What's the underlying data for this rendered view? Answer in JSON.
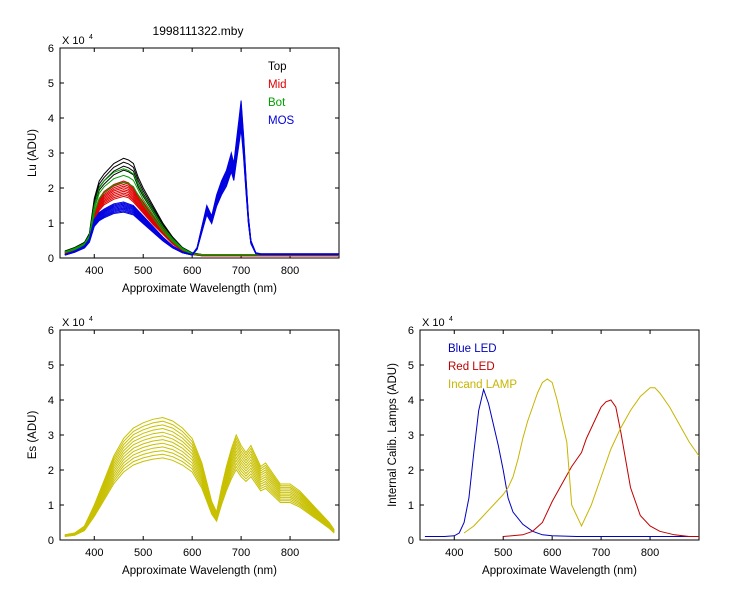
{
  "figure_title": "1998111322.mby",
  "chart_data": [
    {
      "id": "lu",
      "type": "line",
      "title": "",
      "ylabel": "Lu (ADU)",
      "xlabel": "Approximate Wavelength (nm)",
      "xlim": [
        330,
        900
      ],
      "ylim": [
        0,
        6
      ],
      "y_multiplier": "X 10",
      "y_multiplier_exp": "4",
      "xticks": [
        400,
        500,
        600,
        700,
        800
      ],
      "yticks": [
        0,
        1,
        2,
        3,
        4,
        5,
        6
      ],
      "legend_position": "top-right",
      "series": [
        {
          "name": "Top",
          "color": "#000000",
          "copies": 4,
          "spread": 0.12,
          "x": [
            340,
            360,
            380,
            390,
            400,
            410,
            420,
            440,
            460,
            470,
            480,
            490,
            500,
            520,
            540,
            560,
            580,
            600,
            620,
            640,
            660,
            680,
            690,
            700,
            710,
            720,
            740,
            760,
            800,
            850,
            900
          ],
          "y": [
            0.2,
            0.3,
            0.45,
            0.7,
            1.7,
            2.2,
            2.4,
            2.7,
            2.85,
            2.8,
            2.7,
            2.3,
            2.0,
            1.5,
            1.0,
            0.6,
            0.3,
            0.15,
            0.1,
            0.1,
            0.1,
            0.1,
            0.1,
            0.1,
            0.1,
            0.1,
            0.1,
            0.1,
            0.1,
            0.1,
            0.1
          ]
        },
        {
          "name": "Mid",
          "color": "#e00000",
          "copies": 10,
          "spread": 0.2,
          "x": [
            340,
            360,
            380,
            390,
            400,
            410,
            420,
            440,
            460,
            470,
            480,
            490,
            500,
            520,
            540,
            560,
            580,
            600,
            620,
            640,
            660,
            680,
            690,
            700,
            710,
            720,
            740,
            760,
            800,
            850,
            900
          ],
          "y": [
            0.15,
            0.25,
            0.4,
            0.6,
            1.3,
            1.7,
            1.9,
            2.1,
            2.2,
            2.15,
            2.0,
            1.8,
            1.6,
            1.2,
            0.85,
            0.5,
            0.25,
            0.12,
            0.08,
            0.08,
            0.08,
            0.08,
            0.08,
            0.08,
            0.08,
            0.08,
            0.08,
            0.08,
            0.08,
            0.08,
            0.08
          ]
        },
        {
          "name": "Bot",
          "color": "#00a000",
          "copies": 3,
          "spread": 0.15,
          "x": [
            340,
            360,
            380,
            390,
            400,
            410,
            420,
            440,
            460,
            470,
            480,
            490,
            500,
            520,
            540,
            560,
            580,
            600,
            620,
            640,
            660,
            680,
            690,
            700,
            710,
            720,
            740,
            760,
            800,
            850,
            900
          ],
          "y": [
            0.18,
            0.28,
            0.42,
            0.65,
            1.5,
            2.0,
            2.2,
            2.45,
            2.55,
            2.5,
            2.4,
            2.1,
            1.8,
            1.35,
            0.9,
            0.55,
            0.28,
            0.13,
            0.1,
            0.1,
            0.1,
            0.1,
            0.1,
            0.1,
            0.1,
            0.1,
            0.1,
            0.1,
            0.1,
            0.1,
            0.1
          ]
        },
        {
          "name": "MOS",
          "color": "#0000e0",
          "copies": 10,
          "spread": 0.18,
          "x": [
            340,
            360,
            380,
            390,
            400,
            410,
            420,
            440,
            460,
            470,
            480,
            490,
            500,
            520,
            540,
            560,
            580,
            600,
            610,
            620,
            630,
            640,
            650,
            660,
            670,
            680,
            685,
            690,
            695,
            700,
            705,
            710,
            715,
            720,
            730,
            740,
            800,
            850,
            900
          ],
          "y": [
            0.1,
            0.2,
            0.35,
            0.55,
            1.1,
            1.3,
            1.4,
            1.55,
            1.6,
            1.55,
            1.5,
            1.35,
            1.2,
            0.9,
            0.6,
            0.35,
            0.18,
            0.1,
            0.3,
            0.9,
            1.5,
            1.2,
            1.8,
            2.2,
            2.5,
            3.0,
            2.7,
            3.3,
            3.9,
            4.5,
            3.5,
            2.3,
            1.2,
            0.5,
            0.15,
            0.12,
            0.12,
            0.12,
            0.12
          ]
        }
      ]
    },
    {
      "id": "es",
      "type": "line",
      "title": "",
      "ylabel": "Es  (ADU)",
      "xlabel": "Approximate Wavelength (nm)",
      "xlim": [
        330,
        900
      ],
      "ylim": [
        0,
        6
      ],
      "y_multiplier": "X 10",
      "y_multiplier_exp": "4",
      "xticks": [
        400,
        500,
        600,
        700,
        800
      ],
      "yticks": [
        0,
        1,
        2,
        3,
        4,
        5,
        6
      ],
      "series": [
        {
          "name": "",
          "color": "#c8c000",
          "copies": 12,
          "spread": 0.33,
          "x": [
            340,
            360,
            380,
            400,
            420,
            440,
            460,
            480,
            500,
            520,
            540,
            560,
            580,
            600,
            620,
            640,
            650,
            660,
            670,
            680,
            690,
            700,
            710,
            720,
            730,
            740,
            750,
            760,
            770,
            780,
            800,
            820,
            840,
            860,
            880,
            890
          ],
          "y": [
            0.15,
            0.2,
            0.4,
            1.0,
            1.7,
            2.4,
            2.9,
            3.2,
            3.35,
            3.45,
            3.5,
            3.4,
            3.2,
            2.9,
            2.2,
            1.1,
            0.8,
            1.5,
            2.1,
            2.6,
            3.0,
            2.7,
            2.5,
            2.7,
            2.4,
            2.1,
            2.2,
            2.0,
            1.8,
            1.6,
            1.6,
            1.4,
            1.1,
            0.8,
            0.5,
            0.3
          ]
        }
      ]
    },
    {
      "id": "calib",
      "type": "line",
      "title": "",
      "ylabel": "Internal Calib. Lamps (ADU)",
      "xlabel": "Approximate Wavelength (nm)",
      "xlim": [
        330,
        900
      ],
      "ylim": [
        0,
        6
      ],
      "y_multiplier": "X 10",
      "y_multiplier_exp": "4",
      "xticks": [
        400,
        500,
        600,
        700,
        800
      ],
      "yticks": [
        0,
        1,
        2,
        3,
        4,
        5,
        6
      ],
      "legend_position": "top-left",
      "series": [
        {
          "name": "Blue LED",
          "color": "#0000c0",
          "copies": 1,
          "spread": 0,
          "x": [
            340,
            380,
            400,
            410,
            420,
            430,
            440,
            450,
            460,
            470,
            480,
            490,
            500,
            510,
            520,
            540,
            560,
            580,
            600,
            650,
            700,
            800,
            900
          ],
          "y": [
            0.1,
            0.1,
            0.12,
            0.2,
            0.5,
            1.2,
            2.5,
            3.7,
            4.3,
            3.9,
            3.3,
            2.7,
            2.0,
            1.2,
            0.8,
            0.45,
            0.25,
            0.15,
            0.12,
            0.1,
            0.1,
            0.1,
            0.1
          ]
        },
        {
          "name": "Red LED",
          "color": "#c00000",
          "copies": 1,
          "spread": 0,
          "x": [
            500,
            540,
            560,
            580,
            600,
            620,
            640,
            660,
            670,
            680,
            690,
            700,
            710,
            720,
            730,
            740,
            750,
            760,
            780,
            800,
            820,
            850,
            880,
            900
          ],
          "y": [
            0.1,
            0.15,
            0.25,
            0.5,
            1.1,
            1.6,
            2.1,
            2.5,
            2.9,
            3.2,
            3.5,
            3.8,
            3.95,
            4.0,
            3.8,
            3.1,
            2.3,
            1.5,
            0.7,
            0.4,
            0.25,
            0.15,
            0.1,
            0.1
          ]
        },
        {
          "name": "Incand LAMP",
          "color": "#c8b400",
          "copies": 1,
          "spread": 0,
          "x": [
            420,
            440,
            460,
            480,
            500,
            510,
            520,
            530,
            540,
            550,
            560,
            570,
            580,
            590,
            600,
            610,
            620,
            630,
            640,
            660,
            680,
            700,
            720,
            740,
            760,
            780,
            800,
            810,
            820,
            840,
            860,
            880,
            900
          ],
          "y": [
            0.2,
            0.4,
            0.7,
            1.0,
            1.3,
            1.5,
            1.8,
            2.3,
            2.9,
            3.4,
            3.8,
            4.2,
            4.5,
            4.6,
            4.5,
            4.0,
            3.4,
            2.8,
            1.0,
            0.4,
            1.0,
            1.8,
            2.6,
            3.2,
            3.7,
            4.1,
            4.35,
            4.35,
            4.2,
            3.8,
            3.3,
            2.8,
            2.4
          ]
        }
      ]
    }
  ]
}
